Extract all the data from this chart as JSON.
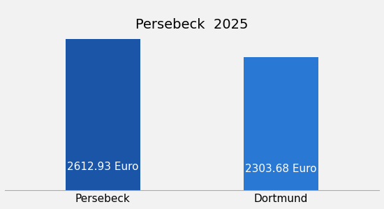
{
  "categories": [
    "Persebeck",
    "Dortmund"
  ],
  "values": [
    2612.93,
    2303.68
  ],
  "bar_colors": [
    "#1a55a8",
    "#2878d4"
  ],
  "value_labels": [
    "2612.93 Euro",
    "2303.68 Euro"
  ],
  "title": "Persebeck  2025",
  "title_fontsize": 14,
  "title_color": "#000000",
  "label_fontsize": 11,
  "category_fontsize": 11,
  "background_color": "#f2f2f2",
  "bar_value_color": "#ffffff",
  "ylim": [
    0,
    3200
  ],
  "bar_width": 0.42
}
